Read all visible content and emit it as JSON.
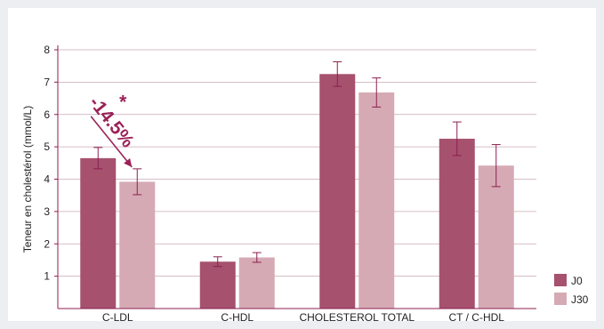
{
  "chart_data": {
    "type": "bar",
    "ylabel": "Teneur en cholestérol (mmol/L)",
    "ylim": [
      0,
      8
    ],
    "y_ticks": [
      1,
      2,
      3,
      4,
      5,
      6,
      7,
      8
    ],
    "grid": true,
    "categories": [
      "C-LDL",
      "C-HDL",
      "CHOLESTEROL TOTAL",
      "CT / C-HDL"
    ],
    "series": [
      {
        "name": "J0",
        "color": "#a6516e",
        "values": [
          4.65,
          1.45,
          7.25,
          5.25
        ],
        "errors": [
          0.33,
          0.15,
          0.38,
          0.52
        ]
      },
      {
        "name": "J30",
        "color": "#d6aab4",
        "values": [
          3.92,
          1.58,
          6.68,
          4.42
        ],
        "errors": [
          0.4,
          0.15,
          0.45,
          0.65
        ]
      }
    ],
    "legend_position": "bottom-right",
    "annotation": {
      "text": "-14.5%",
      "marker": "*",
      "color": "#9b2158"
    },
    "error_bar_color": "#8c1f4f"
  }
}
